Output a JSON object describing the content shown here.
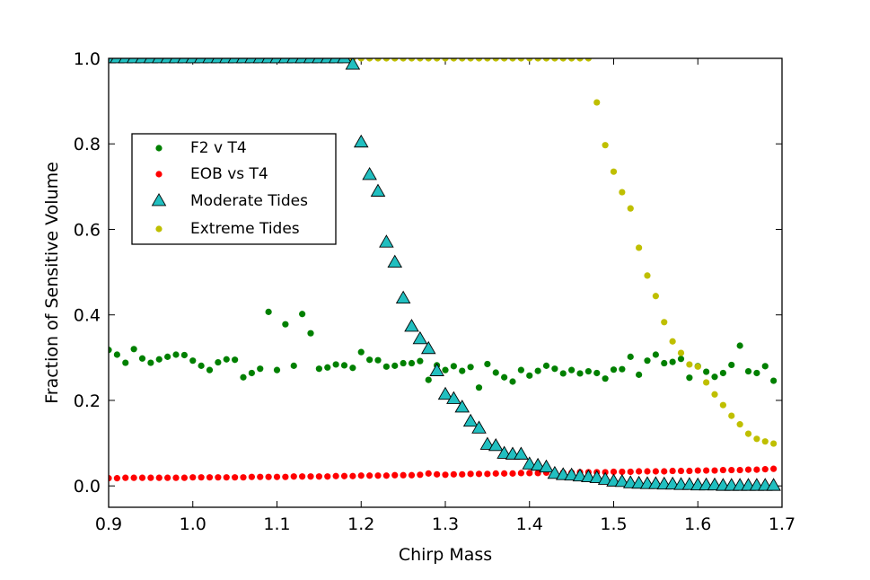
{
  "chart_data": {
    "type": "scatter",
    "title": "",
    "xlabel": "Chirp Mass",
    "ylabel": "Fraction of Sensitive Volume",
    "xlim": [
      0.9,
      1.7
    ],
    "ylim": [
      -0.05,
      1.0
    ],
    "xticks": [
      "0.9",
      "1.0",
      "1.1",
      "1.2",
      "1.3",
      "1.4",
      "1.5",
      "1.6",
      "1.7"
    ],
    "yticks": [
      "0.0",
      "0.2",
      "0.4",
      "0.6",
      "0.8",
      "1.0"
    ],
    "legend_position": "upper-left",
    "series": [
      {
        "name": "F2 v T4",
        "marker": "circle",
        "color": "#008000",
        "x": [
          0.9,
          0.91,
          0.92,
          0.93,
          0.94,
          0.95,
          0.96,
          0.97,
          0.98,
          0.99,
          1.0,
          1.01,
          1.02,
          1.03,
          1.04,
          1.05,
          1.06,
          1.07,
          1.08,
          1.09,
          1.1,
          1.11,
          1.12,
          1.13,
          1.14,
          1.15,
          1.16,
          1.17,
          1.18,
          1.19,
          1.2,
          1.21,
          1.22,
          1.23,
          1.24,
          1.25,
          1.26,
          1.27,
          1.28,
          1.29,
          1.3,
          1.31,
          1.32,
          1.33,
          1.34,
          1.35,
          1.36,
          1.37,
          1.38,
          1.39,
          1.4,
          1.41,
          1.42,
          1.43,
          1.44,
          1.45,
          1.46,
          1.47,
          1.48,
          1.49,
          1.5,
          1.51,
          1.52,
          1.53,
          1.54,
          1.55,
          1.56,
          1.57,
          1.58,
          1.59,
          1.6,
          1.61,
          1.62,
          1.63,
          1.64,
          1.65,
          1.66,
          1.67,
          1.68,
          1.69
        ],
        "y": [
          0.318,
          0.307,
          0.288,
          0.32,
          0.298,
          0.288,
          0.296,
          0.302,
          0.307,
          0.306,
          0.293,
          0.281,
          0.271,
          0.289,
          0.296,
          0.295,
          0.254,
          0.264,
          0.274,
          0.407,
          0.271,
          0.378,
          0.281,
          0.402,
          0.357,
          0.274,
          0.277,
          0.284,
          0.282,
          0.276,
          0.313,
          0.295,
          0.294,
          0.279,
          0.281,
          0.287,
          0.287,
          0.292,
          0.248,
          0.282,
          0.271,
          0.28,
          0.269,
          0.278,
          0.23,
          0.285,
          0.265,
          0.254,
          0.244,
          0.271,
          0.258,
          0.269,
          0.281,
          0.274,
          0.263,
          0.271,
          0.263,
          0.268,
          0.264,
          0.251,
          0.272,
          0.273,
          0.302,
          0.26,
          0.293,
          0.307,
          0.287,
          0.29,
          0.297,
          0.253,
          0.28,
          0.267,
          0.255,
          0.264,
          0.283,
          0.328,
          0.268,
          0.264,
          0.28,
          0.246
        ]
      },
      {
        "name": "EOB vs T4",
        "marker": "circle",
        "color": "#ff0000",
        "x": [
          0.9,
          0.91,
          0.92,
          0.93,
          0.94,
          0.95,
          0.96,
          0.97,
          0.98,
          0.99,
          1.0,
          1.01,
          1.02,
          1.03,
          1.04,
          1.05,
          1.06,
          1.07,
          1.08,
          1.09,
          1.1,
          1.11,
          1.12,
          1.13,
          1.14,
          1.15,
          1.16,
          1.17,
          1.18,
          1.19,
          1.2,
          1.21,
          1.22,
          1.23,
          1.24,
          1.25,
          1.26,
          1.27,
          1.28,
          1.29,
          1.3,
          1.31,
          1.32,
          1.33,
          1.34,
          1.35,
          1.36,
          1.37,
          1.38,
          1.39,
          1.4,
          1.41,
          1.42,
          1.43,
          1.44,
          1.45,
          1.46,
          1.47,
          1.48,
          1.49,
          1.5,
          1.51,
          1.52,
          1.53,
          1.54,
          1.55,
          1.56,
          1.57,
          1.58,
          1.59,
          1.6,
          1.61,
          1.62,
          1.63,
          1.64,
          1.65,
          1.66,
          1.67,
          1.68,
          1.69
        ],
        "y": [
          0.018,
          0.018,
          0.019,
          0.019,
          0.019,
          0.019,
          0.019,
          0.019,
          0.019,
          0.019,
          0.02,
          0.02,
          0.02,
          0.02,
          0.02,
          0.02,
          0.02,
          0.021,
          0.021,
          0.021,
          0.021,
          0.021,
          0.022,
          0.022,
          0.022,
          0.022,
          0.022,
          0.023,
          0.023,
          0.023,
          0.024,
          0.024,
          0.024,
          0.024,
          0.025,
          0.025,
          0.025,
          0.026,
          0.029,
          0.027,
          0.026,
          0.027,
          0.027,
          0.028,
          0.028,
          0.028,
          0.029,
          0.029,
          0.029,
          0.03,
          0.03,
          0.03,
          0.031,
          0.031,
          0.031,
          0.031,
          0.032,
          0.032,
          0.032,
          0.032,
          0.033,
          0.033,
          0.033,
          0.034,
          0.034,
          0.034,
          0.034,
          0.035,
          0.035,
          0.035,
          0.036,
          0.036,
          0.036,
          0.037,
          0.037,
          0.037,
          0.038,
          0.038,
          0.039,
          0.04
        ]
      },
      {
        "name": "Moderate Tides",
        "marker": "triangle",
        "color": "#21bfc0",
        "x": [
          0.9,
          0.91,
          0.92,
          0.93,
          0.94,
          0.95,
          0.96,
          0.97,
          0.98,
          0.99,
          1.0,
          1.01,
          1.02,
          1.03,
          1.04,
          1.05,
          1.06,
          1.07,
          1.08,
          1.09,
          1.1,
          1.11,
          1.12,
          1.13,
          1.14,
          1.15,
          1.16,
          1.17,
          1.18,
          1.19,
          1.2,
          1.21,
          1.22,
          1.23,
          1.24,
          1.25,
          1.26,
          1.27,
          1.28,
          1.29,
          1.3,
          1.31,
          1.32,
          1.33,
          1.34,
          1.35,
          1.36,
          1.37,
          1.38,
          1.39,
          1.4,
          1.41,
          1.42,
          1.43,
          1.44,
          1.45,
          1.46,
          1.47,
          1.48,
          1.49,
          1.5,
          1.51,
          1.52,
          1.53,
          1.54,
          1.55,
          1.56,
          1.57,
          1.58,
          1.59,
          1.6,
          1.61,
          1.62,
          1.63,
          1.64,
          1.65,
          1.66,
          1.67,
          1.68,
          1.69
        ],
        "y": [
          1.0,
          1.0,
          1.0,
          1.0,
          1.0,
          1.0,
          1.0,
          1.0,
          1.0,
          1.0,
          1.0,
          1.0,
          1.0,
          1.0,
          1.0,
          1.0,
          1.0,
          1.0,
          1.0,
          1.0,
          1.0,
          1.0,
          1.0,
          1.0,
          1.0,
          1.0,
          1.0,
          1.0,
          1.0,
          0.985,
          0.803,
          0.727,
          0.688,
          0.569,
          0.522,
          0.438,
          0.372,
          0.343,
          0.32,
          0.268,
          0.213,
          0.203,
          0.183,
          0.15,
          0.134,
          0.096,
          0.093,
          0.075,
          0.073,
          0.073,
          0.05,
          0.047,
          0.043,
          0.028,
          0.025,
          0.024,
          0.022,
          0.02,
          0.018,
          0.014,
          0.01,
          0.009,
          0.006,
          0.005,
          0.004,
          0.004,
          0.003,
          0.003,
          0.002,
          0.002,
          0.001,
          0.001,
          0.001,
          0.0,
          0.0,
          0.0,
          0.0,
          0.0,
          0.0,
          0.0
        ]
      },
      {
        "name": "Extreme Tides",
        "marker": "circle",
        "color": "#bfbf00",
        "x": [
          1.18,
          1.19,
          1.2,
          1.21,
          1.22,
          1.23,
          1.24,
          1.25,
          1.26,
          1.27,
          1.28,
          1.29,
          1.3,
          1.31,
          1.32,
          1.33,
          1.34,
          1.35,
          1.36,
          1.37,
          1.38,
          1.39,
          1.4,
          1.41,
          1.42,
          1.43,
          1.44,
          1.45,
          1.46,
          1.47,
          1.48,
          1.49,
          1.5,
          1.51,
          1.52,
          1.53,
          1.54,
          1.55,
          1.56,
          1.57,
          1.58,
          1.59,
          1.6,
          1.61,
          1.62,
          1.63,
          1.64,
          1.65,
          1.66,
          1.67,
          1.68,
          1.69
        ],
        "y": [
          1.0,
          1.0,
          1.0,
          1.0,
          1.0,
          1.0,
          1.0,
          1.0,
          1.0,
          1.0,
          1.0,
          1.0,
          1.0,
          1.0,
          1.0,
          1.0,
          1.0,
          1.0,
          1.0,
          1.0,
          1.0,
          1.0,
          1.0,
          1.0,
          1.0,
          1.0,
          1.0,
          1.0,
          1.0,
          1.0,
          0.897,
          0.797,
          0.735,
          0.687,
          0.649,
          0.557,
          0.492,
          0.444,
          0.383,
          0.338,
          0.311,
          0.284,
          0.279,
          0.242,
          0.214,
          0.189,
          0.164,
          0.144,
          0.122,
          0.11,
          0.104,
          0.099
        ]
      }
    ]
  }
}
